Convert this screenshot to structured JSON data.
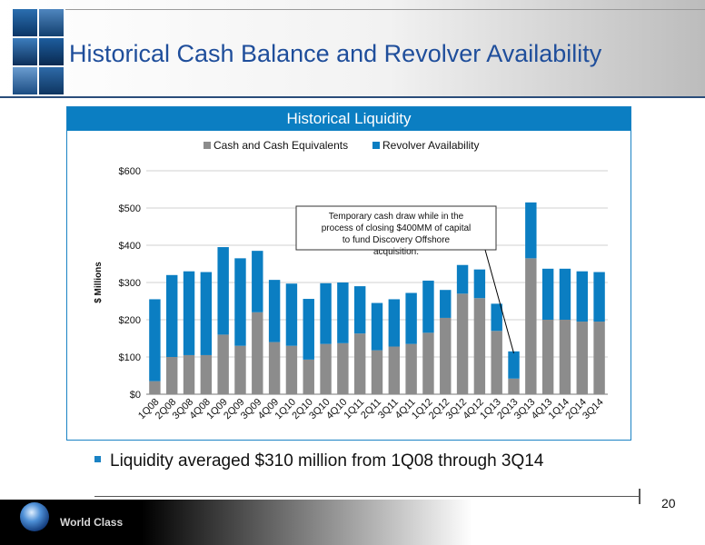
{
  "page": {
    "title": "Historical Cash Balance and Revolver Availability",
    "page_number": "20",
    "footer_text": "World Class"
  },
  "panel": {
    "title": "Historical Liquidity"
  },
  "bullet": {
    "text": "Liquidity averaged $310 million from 1Q08 through 3Q14"
  },
  "chart_data": {
    "type": "bar",
    "stacked": true,
    "categories": [
      "1Q08",
      "2Q08",
      "3Q08",
      "4Q08",
      "1Q09",
      "2Q09",
      "3Q09",
      "4Q09",
      "1Q10",
      "2Q10",
      "3Q10",
      "4Q10",
      "1Q11",
      "2Q11",
      "3Q11",
      "4Q11",
      "1Q12",
      "2Q12",
      "3Q12",
      "4Q12",
      "1Q13",
      "2Q13",
      "3Q13",
      "4Q13",
      "1Q14",
      "2Q14",
      "3Q14"
    ],
    "series": [
      {
        "name": "Cash and Cash Equivalents",
        "color": "#8c8c8c",
        "values": [
          35,
          100,
          105,
          105,
          160,
          130,
          220,
          140,
          130,
          93,
          135,
          137,
          163,
          118,
          128,
          135,
          165,
          205,
          270,
          258,
          170,
          42,
          365,
          200,
          200,
          195,
          195
        ]
      },
      {
        "name": "Revolver Availability",
        "color": "#0b7ec2",
        "values": [
          220,
          220,
          225,
          223,
          235,
          235,
          165,
          167,
          167,
          163,
          163,
          163,
          127,
          127,
          127,
          137,
          140,
          75,
          77,
          77,
          73,
          73,
          150,
          137,
          137,
          135,
          133
        ]
      }
    ],
    "ylabel": "$ Millions",
    "ylim": [
      0,
      600
    ],
    "yticks": [
      "$0",
      "$100",
      "$200",
      "$300",
      "$400",
      "$500",
      "$600"
    ],
    "grid": true,
    "legend_position": "top",
    "annotation": {
      "text": "Temporary cash draw while in the process of closing $400MM of capital to fund Discovery Offshore acquisition.",
      "target_category": "2Q13"
    }
  }
}
